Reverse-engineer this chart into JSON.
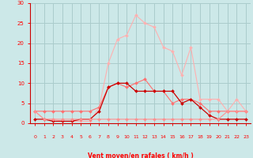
{
  "x": [
    0,
    1,
    2,
    3,
    4,
    5,
    6,
    7,
    8,
    9,
    10,
    11,
    12,
    13,
    14,
    15,
    16,
    17,
    18,
    19,
    20,
    21,
    22,
    23
  ],
  "line_light_pink": [
    3,
    1,
    1,
    0.5,
    0.5,
    0.5,
    0.5,
    4,
    15,
    21,
    22,
    27,
    25,
    24,
    19,
    18,
    12,
    19,
    6,
    6,
    6,
    3,
    6,
    3
  ],
  "line_mid_pink": [
    3,
    3,
    3,
    3,
    3,
    3,
    3,
    4,
    9,
    10,
    9,
    10,
    11,
    8,
    8,
    5,
    6,
    6,
    5,
    3,
    3,
    3,
    3,
    3
  ],
  "line_dark_red": [
    1,
    1,
    0.5,
    0.5,
    0.5,
    1,
    1,
    3,
    9,
    10,
    10,
    8,
    8,
    8,
    8,
    8,
    5,
    6,
    4,
    2,
    1,
    1,
    1,
    1
  ],
  "line_flat_pink": [
    3,
    1,
    1,
    1,
    1,
    1,
    1,
    1,
    1,
    1,
    1,
    1,
    1,
    1,
    1,
    1,
    1,
    1,
    1,
    1,
    1,
    3,
    3,
    3
  ],
  "arrow_angles": [
    225,
    45,
    0,
    0,
    0,
    270,
    45,
    45,
    45,
    45,
    315,
    315,
    315,
    315,
    315,
    315,
    315,
    315,
    315,
    315,
    315,
    315,
    315,
    315
  ],
  "xlabel": "Vent moyen/en rafales ( km/h )",
  "ylim": [
    0,
    30
  ],
  "xlim": [
    -0.5,
    23.5
  ],
  "yticks": [
    0,
    5,
    10,
    15,
    20,
    25,
    30
  ],
  "xticks": [
    0,
    1,
    2,
    3,
    4,
    5,
    6,
    7,
    8,
    9,
    10,
    11,
    12,
    13,
    14,
    15,
    16,
    17,
    18,
    19,
    20,
    21,
    22,
    23
  ],
  "bg_color": "#cce8e8",
  "grid_color": "#aacccc",
  "line_light_pink_color": "#ffb0b0",
  "line_mid_pink_color": "#ff7070",
  "line_dark_red_color": "#cc0000",
  "line_flat_pink_color": "#ff9090"
}
